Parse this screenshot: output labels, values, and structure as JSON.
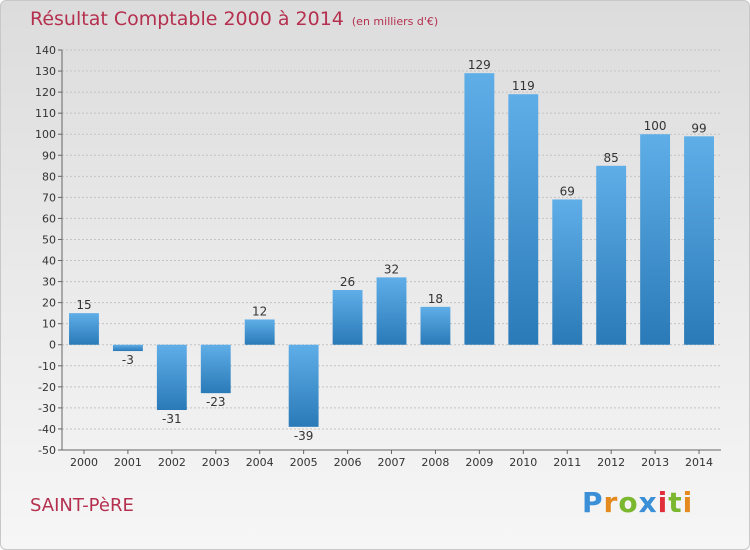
{
  "title": "Résultat Comptable 2000 à 2014",
  "unit": "(en milliers d'€)",
  "commune": "SAINT-PèRE",
  "logo": {
    "text": "Proxiti",
    "letters": [
      "P",
      "r",
      "o",
      "x",
      "i",
      "t",
      "i"
    ],
    "colors": [
      "#3a8fd6",
      "#e58a1f",
      "#7cb82f",
      "#3a8fd6",
      "#e02f3a",
      "#7cb82f",
      "#e58a1f"
    ]
  },
  "colors": {
    "title": "#b5304f",
    "bar_light": "#5faee8",
    "bar_dark": "#2a7ab8"
  },
  "chart_data": {
    "type": "bar",
    "categories": [
      "2000",
      "2001",
      "2002",
      "2003",
      "2004",
      "2005",
      "2006",
      "2007",
      "2008",
      "2009",
      "2010",
      "2011",
      "2012",
      "2013",
      "2014"
    ],
    "values": [
      15,
      -3,
      -31,
      -23,
      12,
      -39,
      26,
      32,
      18,
      129,
      119,
      69,
      85,
      100,
      99
    ],
    "ylim": [
      -50,
      140
    ],
    "yticks": [
      140,
      130,
      120,
      110,
      100,
      90,
      80,
      70,
      60,
      50,
      40,
      30,
      20,
      10,
      0,
      -10,
      -20,
      -30,
      -40,
      -50
    ],
    "grid": true,
    "data_labels": true
  }
}
